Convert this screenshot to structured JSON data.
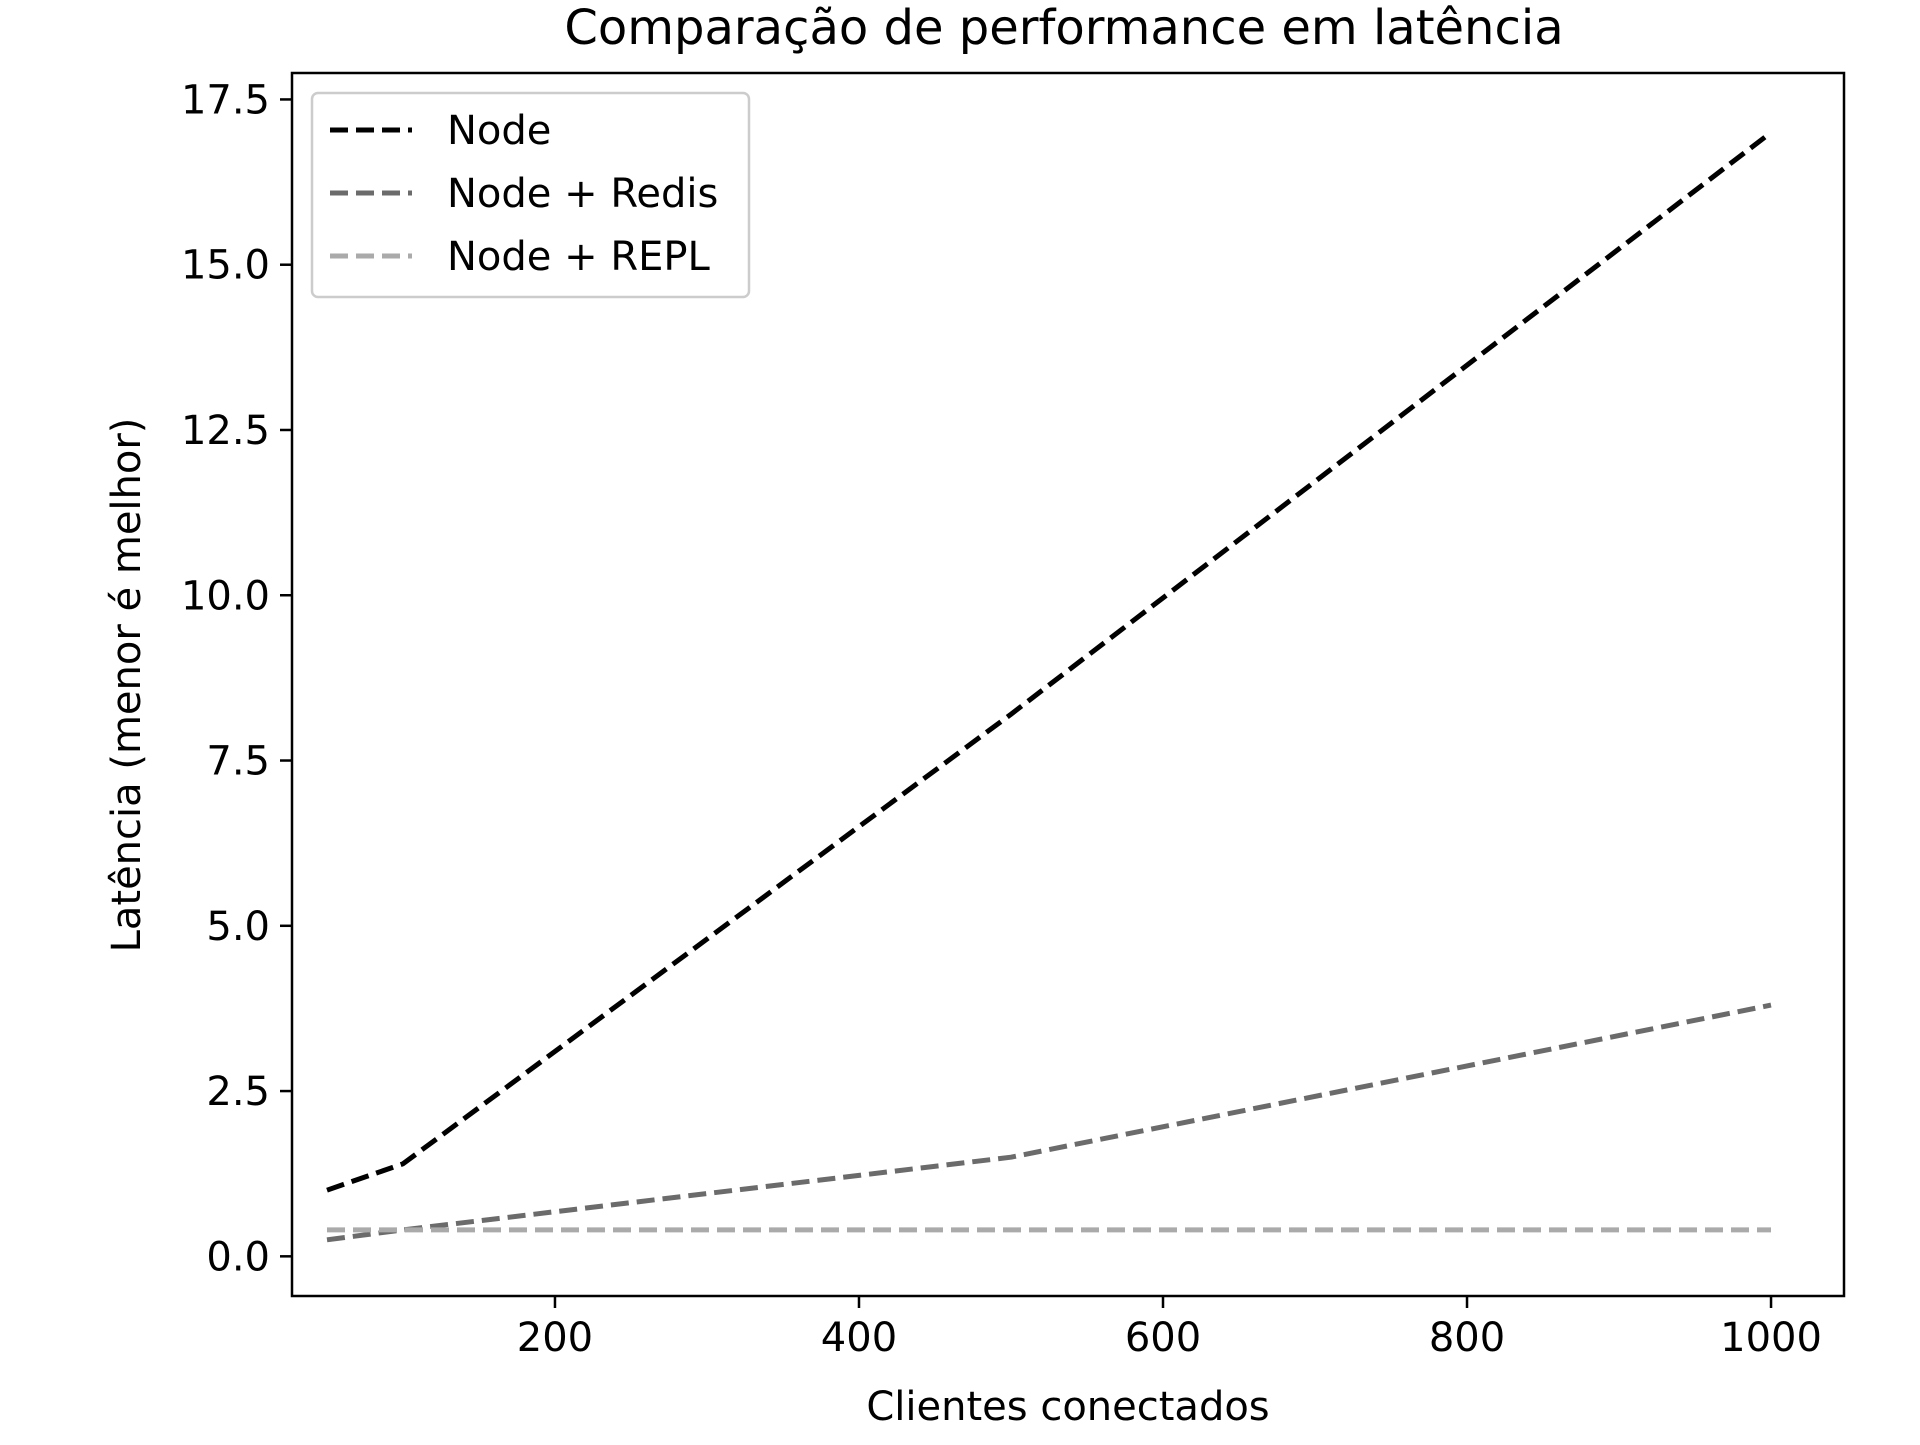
{
  "chart_data": {
    "type": "line",
    "title": "Comparação de performance em latência",
    "xlabel": "Clientes conectados",
    "ylabel": "Latência (menor é melhor)",
    "xlim": [
      27,
      1048
    ],
    "ylim": [
      -0.6,
      17.9
    ],
    "xticks": [
      200,
      400,
      600,
      800,
      1000
    ],
    "xtick_labels": [
      "200",
      "400",
      "600",
      "800",
      "1000"
    ],
    "yticks": [
      0.0,
      2.5,
      5.0,
      7.5,
      10.0,
      12.5,
      15.0,
      17.5
    ],
    "ytick_labels": [
      "0.0",
      "2.5",
      "5.0",
      "7.5",
      "10.0",
      "12.5",
      "15.0",
      "17.5"
    ],
    "grid": false,
    "legend_position": "top-left",
    "series": [
      {
        "name": "Node",
        "color": "#000000",
        "x": [
          50,
          100,
          500,
          1000
        ],
        "y": [
          1.0,
          1.4,
          8.2,
          17.0
        ]
      },
      {
        "name": "Node + Redis",
        "color": "#6b6b6b",
        "x": [
          50,
          100,
          500,
          1000
        ],
        "y": [
          0.25,
          0.4,
          1.5,
          3.8
        ]
      },
      {
        "name": "Node + REPL",
        "color": "#aaaaaa",
        "x": [
          50,
          100,
          500,
          1000
        ],
        "y": [
          0.4,
          0.4,
          0.4,
          0.4
        ]
      }
    ]
  }
}
